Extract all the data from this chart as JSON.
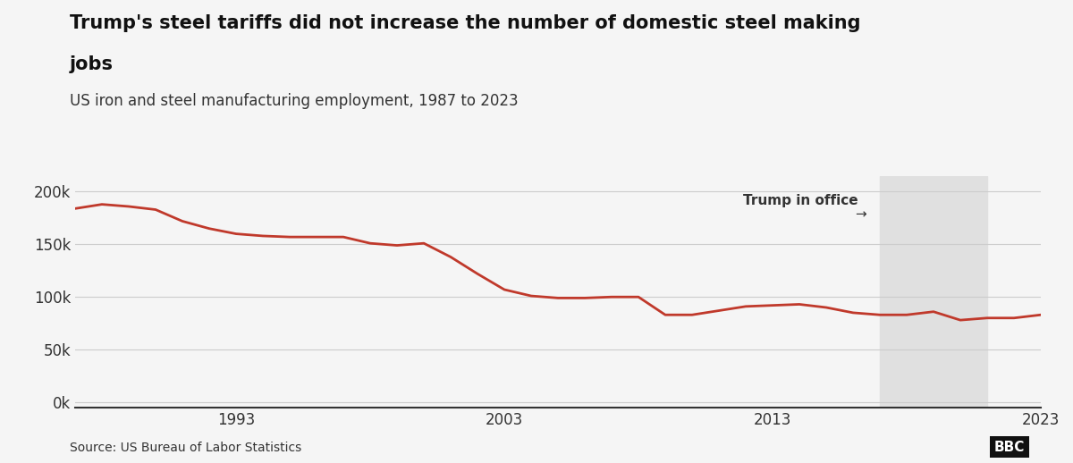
{
  "title_line1": "Trump's steel tariffs did not increase the number of domestic steel making",
  "title_line2": "jobs",
  "subtitle": "US iron and steel manufacturing employment, 1987 to 2023",
  "source": "Source: US Bureau of Labor Statistics",
  "line_color": "#c0392b",
  "background_color": "#f5f5f5",
  "trump_shade_color": "#e0e0e0",
  "trump_start": 2017,
  "trump_end": 2021,
  "annotation_text": "Trump in office",
  "annotation_arrow": "→",
  "years": [
    1987,
    1988,
    1989,
    1990,
    1991,
    1992,
    1993,
    1994,
    1995,
    1996,
    1997,
    1998,
    1999,
    2000,
    2001,
    2002,
    2003,
    2004,
    2005,
    2006,
    2007,
    2008,
    2009,
    2010,
    2011,
    2012,
    2013,
    2014,
    2015,
    2016,
    2017,
    2018,
    2019,
    2020,
    2021,
    2022,
    2023
  ],
  "values": [
    184000,
    188000,
    186000,
    183000,
    172000,
    165000,
    160000,
    158000,
    157000,
    157000,
    157000,
    151000,
    149000,
    151000,
    138000,
    122000,
    107000,
    101000,
    99000,
    99000,
    100000,
    100000,
    83000,
    83000,
    87000,
    91000,
    92000,
    93000,
    90000,
    85000,
    83000,
    83000,
    86000,
    78000,
    80000,
    80000,
    83000
  ],
  "yticks": [
    0,
    50000,
    100000,
    150000,
    200000
  ],
  "ytick_labels": [
    "0k",
    "50k",
    "100k",
    "150k",
    "200k"
  ],
  "xticks": [
    1993,
    2003,
    2013,
    2023
  ],
  "ylim": [
    -5000,
    215000
  ],
  "xlim": [
    1987,
    2023
  ]
}
